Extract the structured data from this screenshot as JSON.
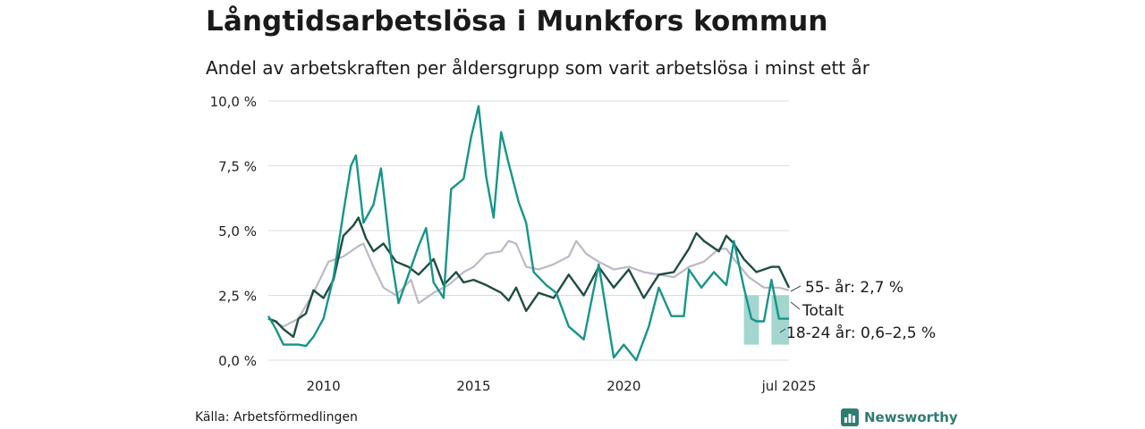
{
  "title": "Långtidsarbetslösa i Munkfors kommun",
  "subtitle": "Andel av arbetskraften per åldersgrupp som varit arbetslösa i minst ett år",
  "source": "Källa: Arbetsförmedlingen",
  "brand": {
    "name": "Newsworthy",
    "icon": "bar-chart-logo-icon"
  },
  "colors": {
    "total": "#1f4d42",
    "youth": "#16958a",
    "senior": "#bdb8c6",
    "band": "#9dd4cc",
    "grid": "#dcdcdc"
  },
  "chart_data": {
    "type": "line",
    "x_start": "2008-03",
    "x_end": "2025-07",
    "x_ticks": [
      {
        "value": "2010-01",
        "label": "2010"
      },
      {
        "value": "2015-01",
        "label": "2015"
      },
      {
        "value": "2020-01",
        "label": "2020"
      },
      {
        "value": "2025-07",
        "label": "jul 2025"
      }
    ],
    "ylim": [
      0,
      10
    ],
    "y_ticks": [
      {
        "value": 0,
        "label": "0,0 %"
      },
      {
        "value": 2.5,
        "label": "2,5 %"
      },
      {
        "value": 5,
        "label": "5,0 %"
      },
      {
        "value": 7.5,
        "label": "7,5 %"
      },
      {
        "value": 10,
        "label": "10,0 %"
      }
    ],
    "grid": true,
    "series": [
      {
        "key": "senior",
        "points": [
          [
            "2008-03",
            1.6
          ],
          [
            "2008-09",
            1.3
          ],
          [
            "2009-03",
            1.6
          ],
          [
            "2009-09",
            2.6
          ],
          [
            "2010-03",
            3.8
          ],
          [
            "2010-09",
            4.0
          ],
          [
            "2011-03",
            4.4
          ],
          [
            "2011-05",
            4.5
          ],
          [
            "2011-09",
            3.6
          ],
          [
            "2012-01",
            2.8
          ],
          [
            "2012-06",
            2.5
          ],
          [
            "2012-12",
            3.1
          ],
          [
            "2013-03",
            2.2
          ],
          [
            "2013-09",
            2.6
          ],
          [
            "2014-03",
            2.9
          ],
          [
            "2014-09",
            3.4
          ],
          [
            "2015-01",
            3.6
          ],
          [
            "2015-06",
            4.1
          ],
          [
            "2015-12",
            4.2
          ],
          [
            "2016-03",
            4.6
          ],
          [
            "2016-06",
            4.5
          ],
          [
            "2016-10",
            3.6
          ],
          [
            "2017-03",
            3.5
          ],
          [
            "2017-09",
            3.7
          ],
          [
            "2018-03",
            4.0
          ],
          [
            "2018-06",
            4.6
          ],
          [
            "2018-10",
            4.1
          ],
          [
            "2019-03",
            3.8
          ],
          [
            "2019-09",
            3.5
          ],
          [
            "2020-03",
            3.6
          ],
          [
            "2020-09",
            3.4
          ],
          [
            "2021-03",
            3.3
          ],
          [
            "2021-09",
            3.2
          ],
          [
            "2022-03",
            3.6
          ],
          [
            "2022-09",
            3.8
          ],
          [
            "2023-03",
            4.3
          ],
          [
            "2023-06",
            4.3
          ],
          [
            "2023-09",
            3.9
          ],
          [
            "2024-03",
            3.2
          ],
          [
            "2024-09",
            2.8
          ],
          [
            "2025-03",
            2.8
          ],
          [
            "2025-07",
            2.7
          ]
        ]
      },
      {
        "key": "total",
        "points": [
          [
            "2008-03",
            1.6
          ],
          [
            "2008-06",
            1.5
          ],
          [
            "2008-09",
            1.2
          ],
          [
            "2009-01",
            0.9
          ],
          [
            "2009-03",
            1.6
          ],
          [
            "2009-06",
            1.8
          ],
          [
            "2009-09",
            2.7
          ],
          [
            "2010-01",
            2.4
          ],
          [
            "2010-05",
            3.1
          ],
          [
            "2010-09",
            4.8
          ],
          [
            "2011-01",
            5.2
          ],
          [
            "2011-03",
            5.5
          ],
          [
            "2011-06",
            4.7
          ],
          [
            "2011-09",
            4.2
          ],
          [
            "2012-01",
            4.5
          ],
          [
            "2012-06",
            3.8
          ],
          [
            "2012-11",
            3.6
          ],
          [
            "2013-03",
            3.3
          ],
          [
            "2013-09",
            3.9
          ],
          [
            "2014-01",
            2.9
          ],
          [
            "2014-06",
            3.4
          ],
          [
            "2014-09",
            3.0
          ],
          [
            "2015-01",
            3.1
          ],
          [
            "2015-06",
            2.9
          ],
          [
            "2015-12",
            2.6
          ],
          [
            "2016-03",
            2.3
          ],
          [
            "2016-06",
            2.8
          ],
          [
            "2016-10",
            1.9
          ],
          [
            "2017-03",
            2.6
          ],
          [
            "2017-09",
            2.4
          ],
          [
            "2018-03",
            3.3
          ],
          [
            "2018-09",
            2.5
          ],
          [
            "2019-03",
            3.6
          ],
          [
            "2019-09",
            2.8
          ],
          [
            "2020-03",
            3.5
          ],
          [
            "2020-09",
            2.4
          ],
          [
            "2021-03",
            3.3
          ],
          [
            "2021-09",
            3.4
          ],
          [
            "2022-03",
            4.3
          ],
          [
            "2022-06",
            4.9
          ],
          [
            "2022-09",
            4.6
          ],
          [
            "2023-03",
            4.2
          ],
          [
            "2023-06",
            4.8
          ],
          [
            "2023-09",
            4.5
          ],
          [
            "2024-01",
            3.9
          ],
          [
            "2024-06",
            3.4
          ],
          [
            "2024-12",
            3.6
          ],
          [
            "2025-03",
            3.6
          ],
          [
            "2025-07",
            2.8
          ]
        ]
      },
      {
        "key": "youth",
        "points": [
          [
            "2008-03",
            1.7
          ],
          [
            "2008-06",
            1.2
          ],
          [
            "2008-09",
            0.6
          ],
          [
            "2009-03",
            0.6
          ],
          [
            "2009-06",
            0.55
          ],
          [
            "2009-09",
            0.9
          ],
          [
            "2010-01",
            1.6
          ],
          [
            "2010-05",
            3.2
          ],
          [
            "2010-09",
            5.7
          ],
          [
            "2010-12",
            7.5
          ],
          [
            "2011-02",
            7.9
          ],
          [
            "2011-05",
            5.3
          ],
          [
            "2011-09",
            6.0
          ],
          [
            "2011-12",
            7.4
          ],
          [
            "2012-04",
            4.0
          ],
          [
            "2012-07",
            2.2
          ],
          [
            "2012-11",
            3.3
          ],
          [
            "2013-03",
            4.4
          ],
          [
            "2013-06",
            5.1
          ],
          [
            "2013-09",
            3.0
          ],
          [
            "2014-01",
            2.4
          ],
          [
            "2014-04",
            6.6
          ],
          [
            "2014-09",
            7.0
          ],
          [
            "2014-12",
            8.6
          ],
          [
            "2015-03",
            9.8
          ],
          [
            "2015-06",
            7.1
          ],
          [
            "2015-09",
            5.5
          ],
          [
            "2015-12",
            8.8
          ],
          [
            "2016-03",
            7.6
          ],
          [
            "2016-07",
            6.1
          ],
          [
            "2016-10",
            5.3
          ],
          [
            "2017-01",
            3.4
          ],
          [
            "2017-06",
            2.9
          ],
          [
            "2017-10",
            2.6
          ],
          [
            "2018-03",
            1.3
          ],
          [
            "2018-09",
            0.8
          ],
          [
            "2019-03",
            3.7
          ],
          [
            "2019-09",
            0.1
          ],
          [
            "2020-01",
            0.6
          ],
          [
            "2020-06",
            0.0
          ],
          [
            "2020-11",
            1.3
          ],
          [
            "2021-03",
            2.8
          ],
          [
            "2021-08",
            1.7
          ],
          [
            "2022-01",
            1.7
          ],
          [
            "2022-03",
            3.5
          ],
          [
            "2022-08",
            2.8
          ],
          [
            "2023-01",
            3.4
          ],
          [
            "2023-06",
            2.9
          ],
          [
            "2023-09",
            4.6
          ],
          [
            "2024-01",
            2.8
          ],
          [
            "2024-04",
            1.6
          ],
          [
            "2024-06",
            1.5
          ],
          [
            "2024-09",
            1.5
          ],
          [
            "2024-12",
            3.1
          ],
          [
            "2025-03",
            1.6
          ],
          [
            "2025-07",
            1.6
          ]
        ]
      }
    ],
    "range_band": [
      {
        "x": "2024-01",
        "low": 0.6,
        "high": 2.5
      },
      {
        "x": "2024-07",
        "low": 0.6,
        "high": 2.5
      },
      {
        "x": "2024-12",
        "low": 0.6,
        "high": 2.5
      },
      {
        "x": "2025-07",
        "low": 0.6,
        "high": 2.5
      }
    ],
    "annotations": [
      {
        "key": "senior",
        "label": "55- år: 2,7 %"
      },
      {
        "key": "total",
        "label": "Totalt"
      },
      {
        "key": "youth",
        "label": "18-24 år: 0,6–2,5 %"
      }
    ]
  }
}
